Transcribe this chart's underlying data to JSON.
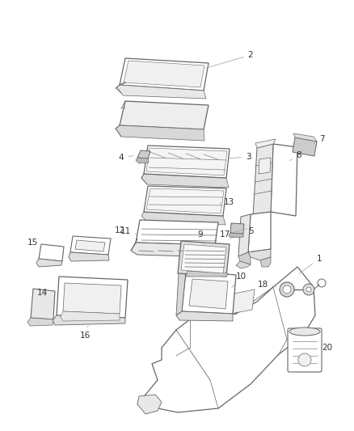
{
  "bg_color": "#ffffff",
  "line_color": "#666666",
  "label_color": "#333333",
  "label_fontsize": 7.5,
  "fig_w": 4.38,
  "fig_h": 5.33,
  "dpi": 100
}
